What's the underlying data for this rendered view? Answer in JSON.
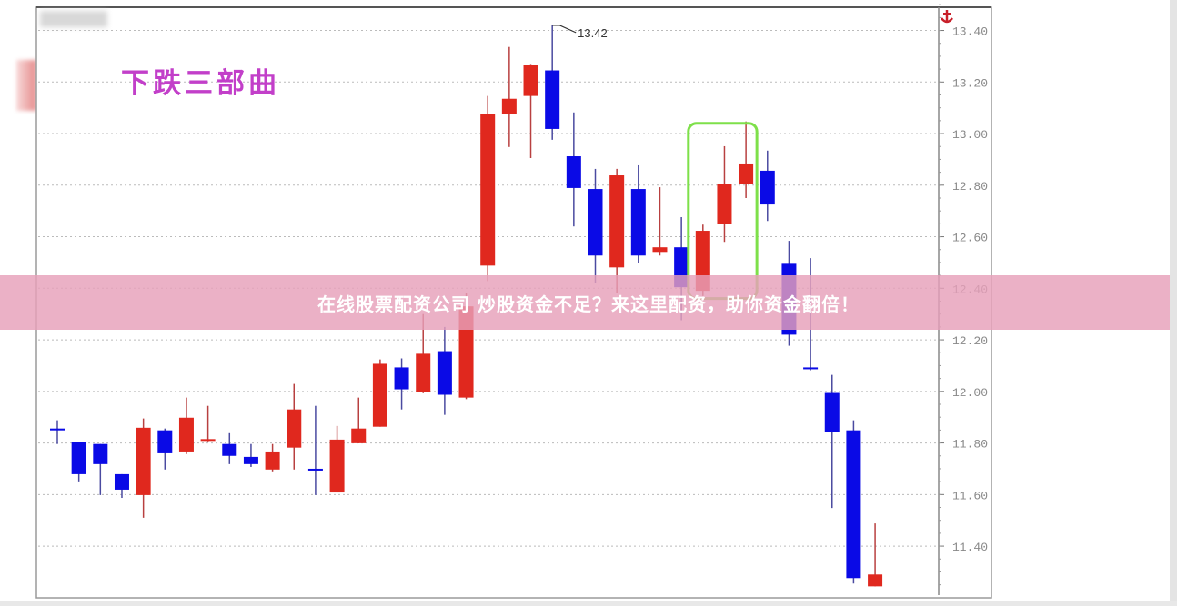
{
  "chart_data": {
    "type": "candlestick",
    "title": "下跌三部曲",
    "ylim": [
      11.21,
      13.49
    ],
    "y_ticks": [
      "13.40",
      "13.20",
      "13.00",
      "12.80",
      "12.60",
      "12.40",
      "12.20",
      "12.00",
      "11.80",
      "11.60",
      "11.40"
    ],
    "grid": true,
    "up_color": "#e0281e",
    "down_color": "#0a0ae6",
    "peak_label": "13.42",
    "peak_index": 23,
    "highlight": {
      "from_index": 30,
      "to_index": 32,
      "top": 13.04,
      "bottom": 12.36,
      "color": "#7ee04a"
    },
    "candles": [
      {
        "o": 11.856,
        "h": 11.888,
        "l": 11.796,
        "c": 11.852
      },
      {
        "o": 11.803,
        "h": 11.803,
        "l": 11.651,
        "c": 11.679
      },
      {
        "o": 11.796,
        "h": 11.796,
        "l": 11.598,
        "c": 11.718
      },
      {
        "o": 11.679,
        "h": 11.679,
        "l": 11.587,
        "c": 11.619
      },
      {
        "o": 11.598,
        "h": 11.895,
        "l": 11.51,
        "c": 11.859
      },
      {
        "o": 11.849,
        "h": 11.856,
        "l": 11.697,
        "c": 11.76
      },
      {
        "o": 11.767,
        "h": 11.976,
        "l": 11.757,
        "c": 11.898
      },
      {
        "o": 11.81,
        "h": 11.944,
        "l": 11.806,
        "c": 11.815
      },
      {
        "o": 11.796,
        "h": 11.838,
        "l": 11.718,
        "c": 11.75
      },
      {
        "o": 11.746,
        "h": 11.796,
        "l": 11.707,
        "c": 11.718
      },
      {
        "o": 11.697,
        "h": 11.796,
        "l": 11.69,
        "c": 11.767
      },
      {
        "o": 11.782,
        "h": 12.029,
        "l": 11.697,
        "c": 11.93
      },
      {
        "o": 11.7,
        "h": 11.944,
        "l": 11.598,
        "c": 11.697
      },
      {
        "o": 11.608,
        "h": 11.866,
        "l": 11.608,
        "c": 11.813
      },
      {
        "o": 11.799,
        "h": 11.976,
        "l": 11.799,
        "c": 11.856
      },
      {
        "o": 11.863,
        "h": 12.124,
        "l": 11.863,
        "c": 12.107
      },
      {
        "o": 12.093,
        "h": 12.128,
        "l": 11.93,
        "c": 12.008
      },
      {
        "o": 11.997,
        "h": 12.3,
        "l": 11.993,
        "c": 12.146
      },
      {
        "o": 12.156,
        "h": 12.25,
        "l": 11.909,
        "c": 11.987
      },
      {
        "o": 11.976,
        "h": 12.38,
        "l": 11.97,
        "c": 12.33
      },
      {
        "o": 12.488,
        "h": 13.146,
        "l": 12.428,
        "c": 13.075
      },
      {
        "o": 13.075,
        "h": 13.336,
        "l": 12.948,
        "c": 13.135
      },
      {
        "o": 13.146,
        "h": 13.27,
        "l": 12.905,
        "c": 13.266
      },
      {
        "o": 13.245,
        "h": 13.42,
        "l": 12.976,
        "c": 13.018
      },
      {
        "o": 12.912,
        "h": 13.082,
        "l": 12.64,
        "c": 12.789
      },
      {
        "o": 12.785,
        "h": 12.863,
        "l": 12.421,
        "c": 12.527
      },
      {
        "o": 12.481,
        "h": 12.863,
        "l": 12.382,
        "c": 12.838
      },
      {
        "o": 12.785,
        "h": 12.877,
        "l": 12.499,
        "c": 12.527
      },
      {
        "o": 12.541,
        "h": 12.792,
        "l": 12.527,
        "c": 12.559
      },
      {
        "o": 12.559,
        "h": 12.676,
        "l": 12.276,
        "c": 12.404
      },
      {
        "o": 12.39,
        "h": 12.647,
        "l": 12.37,
        "c": 12.623
      },
      {
        "o": 12.651,
        "h": 12.951,
        "l": 12.58,
        "c": 12.803
      },
      {
        "o": 12.806,
        "h": 13.047,
        "l": 12.75,
        "c": 12.884
      },
      {
        "o": 12.856,
        "h": 12.934,
        "l": 12.661,
        "c": 12.725
      },
      {
        "o": 12.495,
        "h": 12.584,
        "l": 12.177,
        "c": 12.22
      },
      {
        "o": 12.093,
        "h": 12.517,
        "l": 12.082,
        "c": 12.089
      },
      {
        "o": 11.994,
        "h": 12.064,
        "l": 11.548,
        "c": 11.842
      },
      {
        "o": 11.849,
        "h": 11.888,
        "l": 11.255,
        "c": 11.276
      },
      {
        "o": 11.244,
        "h": 11.488,
        "l": 11.244,
        "c": 11.29
      }
    ]
  },
  "banner": {
    "text": "在线股票配资公司 炒股资金不足？来这里配资，助你资金翻倍！"
  },
  "icons": {
    "axis_top": "anchor-icon"
  }
}
